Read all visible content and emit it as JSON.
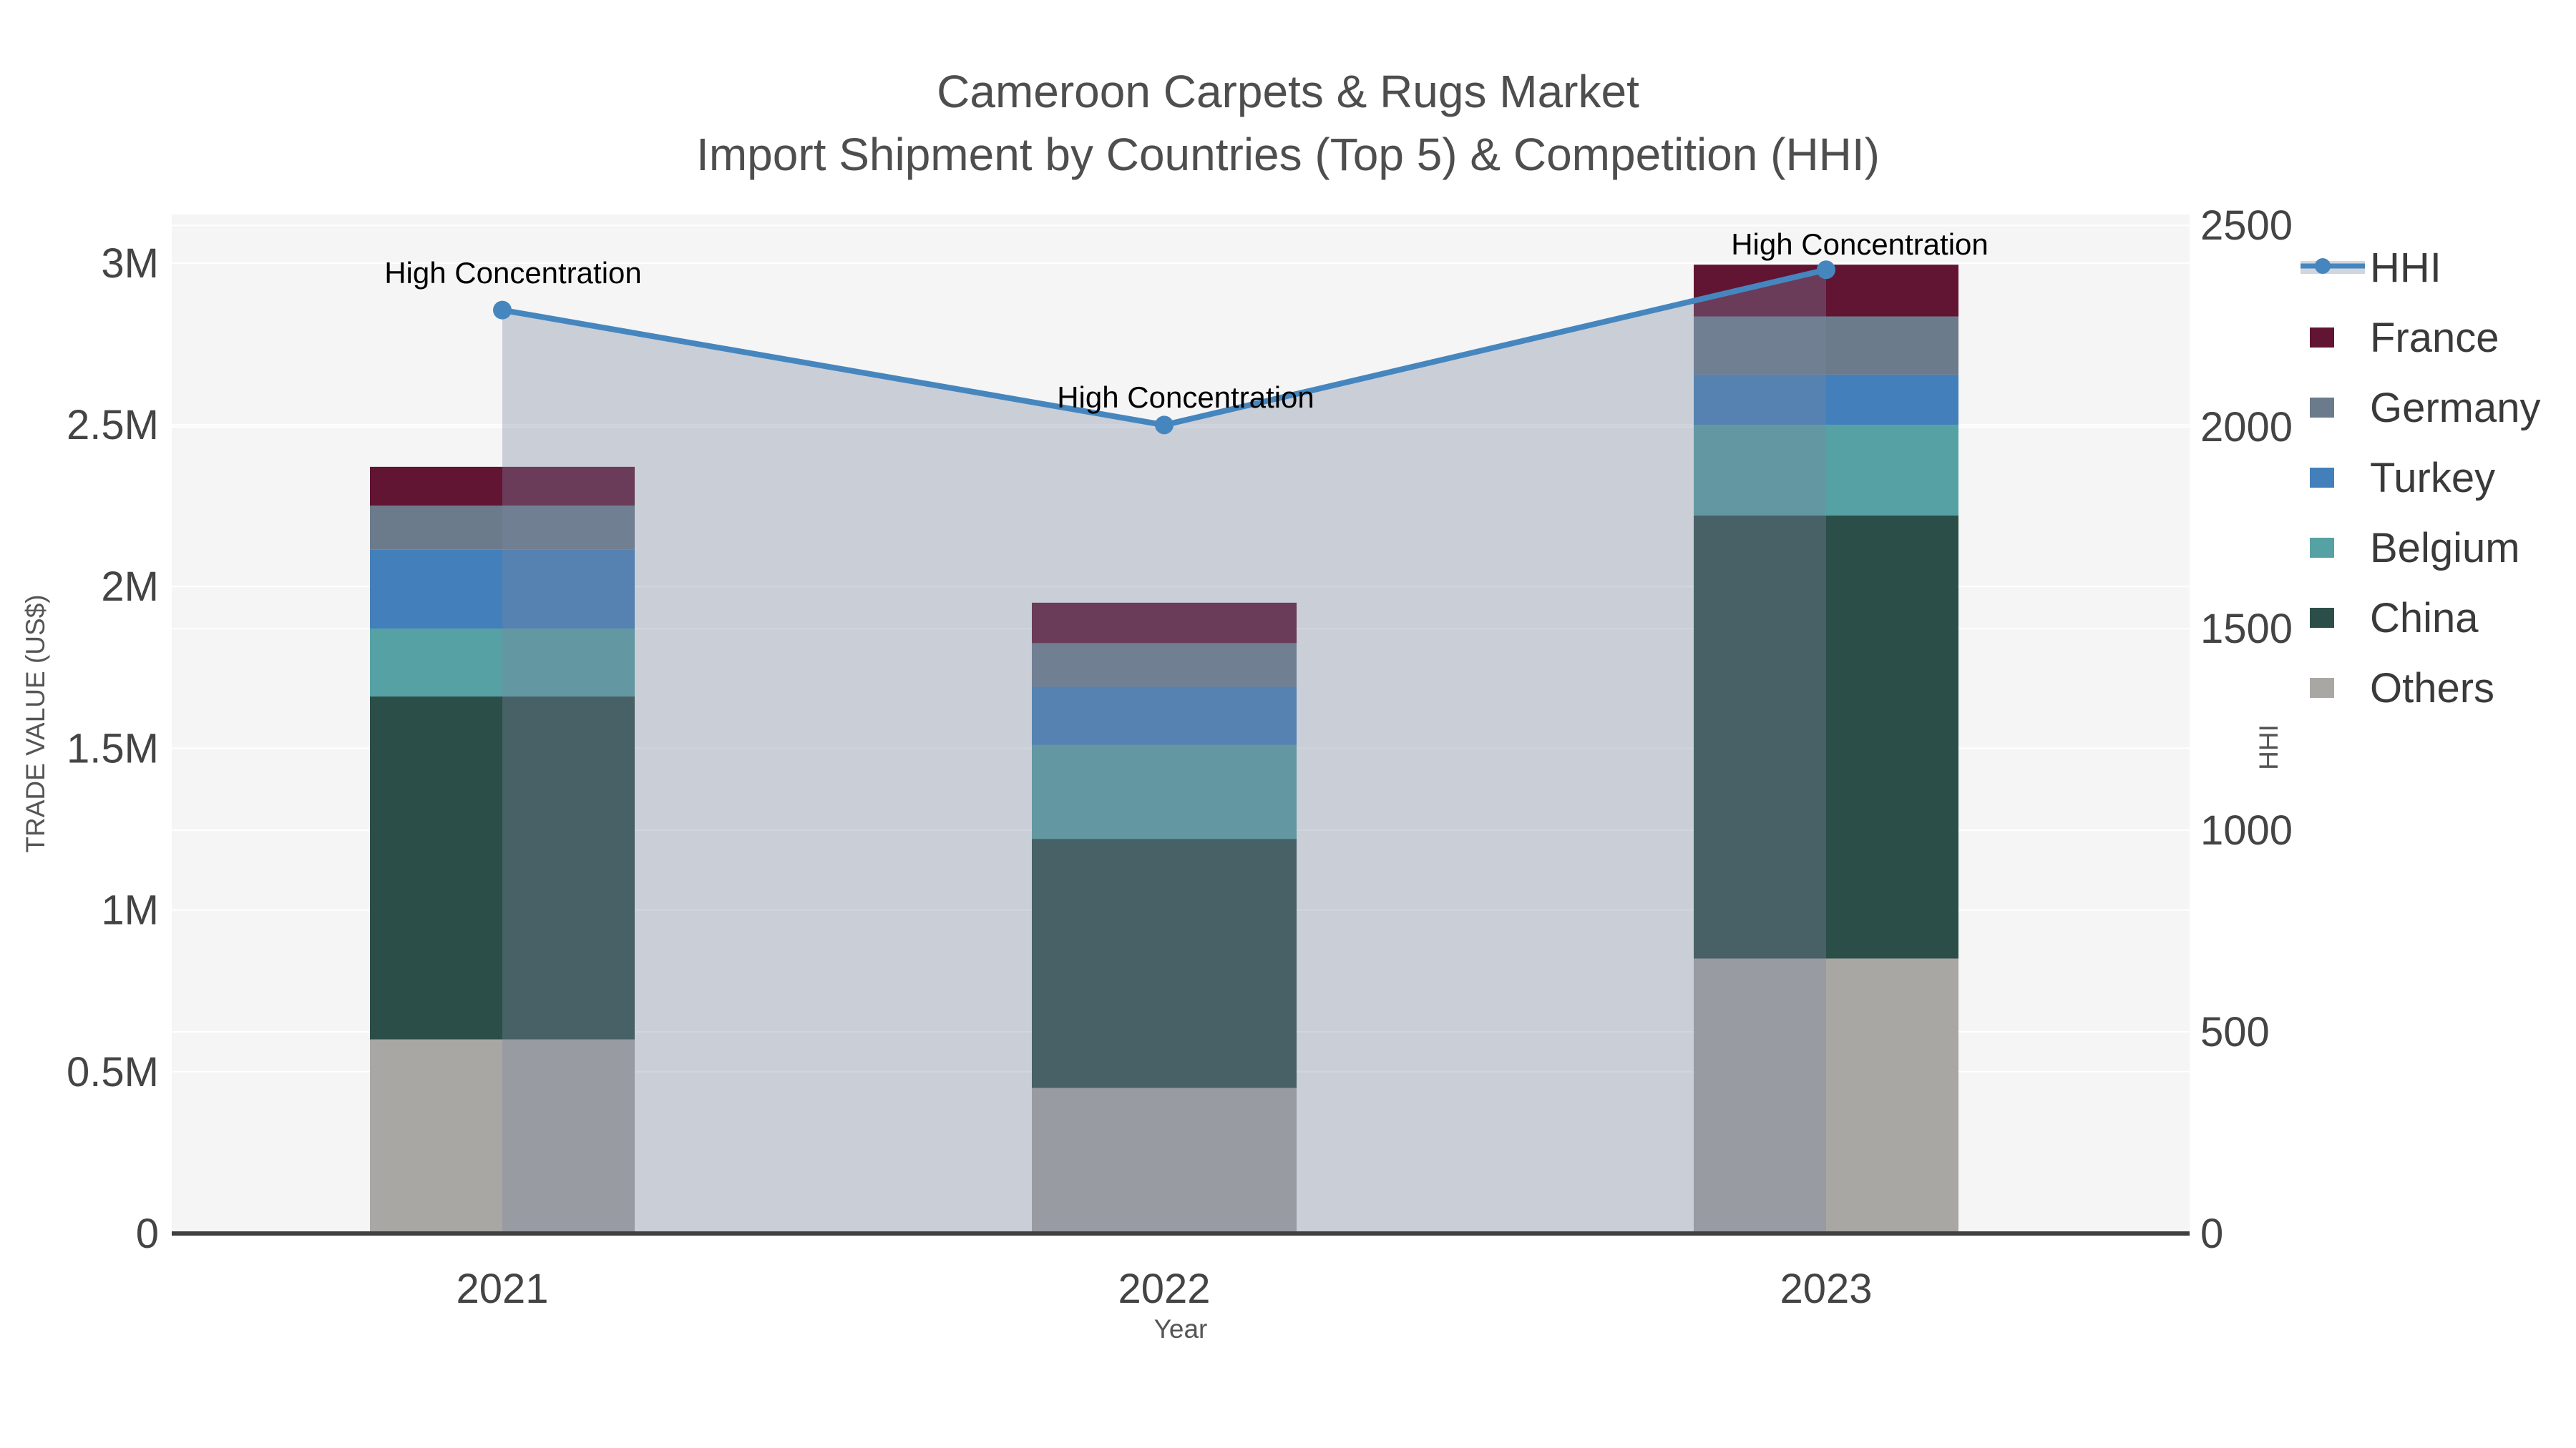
{
  "title": {
    "line1": "Cameroon Carpets & Rugs Market",
    "line2": "Import Shipment by Countries (Top 5) & Competition (HHI)"
  },
  "axes": {
    "x": {
      "title": "Year",
      "categories": [
        "2021",
        "2022",
        "2023"
      ]
    },
    "y_left": {
      "title": "TRADE VALUE (US$)",
      "ticks": [
        {
          "label": "0",
          "value": 0
        },
        {
          "label": "0.5M",
          "value": 500000
        },
        {
          "label": "1M",
          "value": 1000000
        },
        {
          "label": "1.5M",
          "value": 1500000
        },
        {
          "label": "2M",
          "value": 2000000
        },
        {
          "label": "2.5M",
          "value": 2500000
        },
        {
          "label": "3M",
          "value": 3000000
        }
      ],
      "range": [
        0,
        3150000
      ]
    },
    "y_right": {
      "title": "HHI",
      "ticks": [
        {
          "label": "0",
          "value": 0
        },
        {
          "label": "500",
          "value": 500
        },
        {
          "label": "1000",
          "value": 1000
        },
        {
          "label": "1500",
          "value": 1500
        },
        {
          "label": "2000",
          "value": 2000
        },
        {
          "label": "2500",
          "value": 2500
        }
      ],
      "range": [
        0,
        2527
      ]
    }
  },
  "chart_data": {
    "type": "bar",
    "stacked": true,
    "categories": [
      "2021",
      "2022",
      "2023"
    ],
    "title": "Cameroon Carpets & Rugs Market — Import Shipment by Countries (Top 5) & Competition (HHI)",
    "xlabel": "Year",
    "ylabel": "TRADE VALUE (US$)",
    "ylabel_right": "HHI",
    "ylim_left": [
      0,
      3150000
    ],
    "ylim_right": [
      0,
      2527
    ],
    "grid": true,
    "legend_position": "right",
    "series": [
      {
        "name": "Others",
        "values": [
          600000,
          450000,
          850000
        ],
        "color": "#a8a7a3"
      },
      {
        "name": "China",
        "values": [
          1060000,
          770000,
          1370000
        ],
        "color": "#2c4e48"
      },
      {
        "name": "Belgium",
        "values": [
          210000,
          290000,
          280000
        ],
        "color": "#56a1a3"
      },
      {
        "name": "Turkey",
        "values": [
          245000,
          180000,
          155000
        ],
        "color": "#4380bb"
      },
      {
        "name": "Germany",
        "values": [
          135000,
          135000,
          180000
        ],
        "color": "#6c7b8c"
      },
      {
        "name": "France",
        "values": [
          120000,
          125000,
          160000
        ],
        "color": "#621433"
      }
    ],
    "line_series": {
      "name": "HHI",
      "axis": "right",
      "values": [
        2290,
        2005,
        2390
      ],
      "color": "#4686bf",
      "area_fill": "rgba(124,135,160,0.35)"
    },
    "bar_totals": [
      2370000,
      1950000,
      2995000
    ]
  },
  "annotations": [
    {
      "text": "High Concentration"
    },
    {
      "text": "High Concentration"
    },
    {
      "text": "High Concentration"
    }
  ],
  "legend": {
    "items": [
      {
        "label": "HHI",
        "type": "line",
        "color": "#4686bf"
      },
      {
        "label": "France",
        "type": "swatch",
        "color": "#621433"
      },
      {
        "label": "Germany",
        "type": "swatch",
        "color": "#6c7b8c"
      },
      {
        "label": "Turkey",
        "type": "swatch",
        "color": "#4380bb"
      },
      {
        "label": "Belgium",
        "type": "swatch",
        "color": "#56a1a3"
      },
      {
        "label": "China",
        "type": "swatch",
        "color": "#2c4e48"
      },
      {
        "label": "Others",
        "type": "swatch",
        "color": "#a8a7a3"
      }
    ]
  },
  "colors": {
    "background": "#ffffff",
    "plot_background": "#f5f5f5",
    "gridline": "#ffffff",
    "axis_line": "#3f3f3f",
    "tick_text": "#444444",
    "title_text": "#4e4e4e",
    "axis_title_text": "#555555",
    "legend_text": "#3a3a3a",
    "annotation_text": "#000000",
    "hhi_legend_band": "#d1d5de"
  }
}
